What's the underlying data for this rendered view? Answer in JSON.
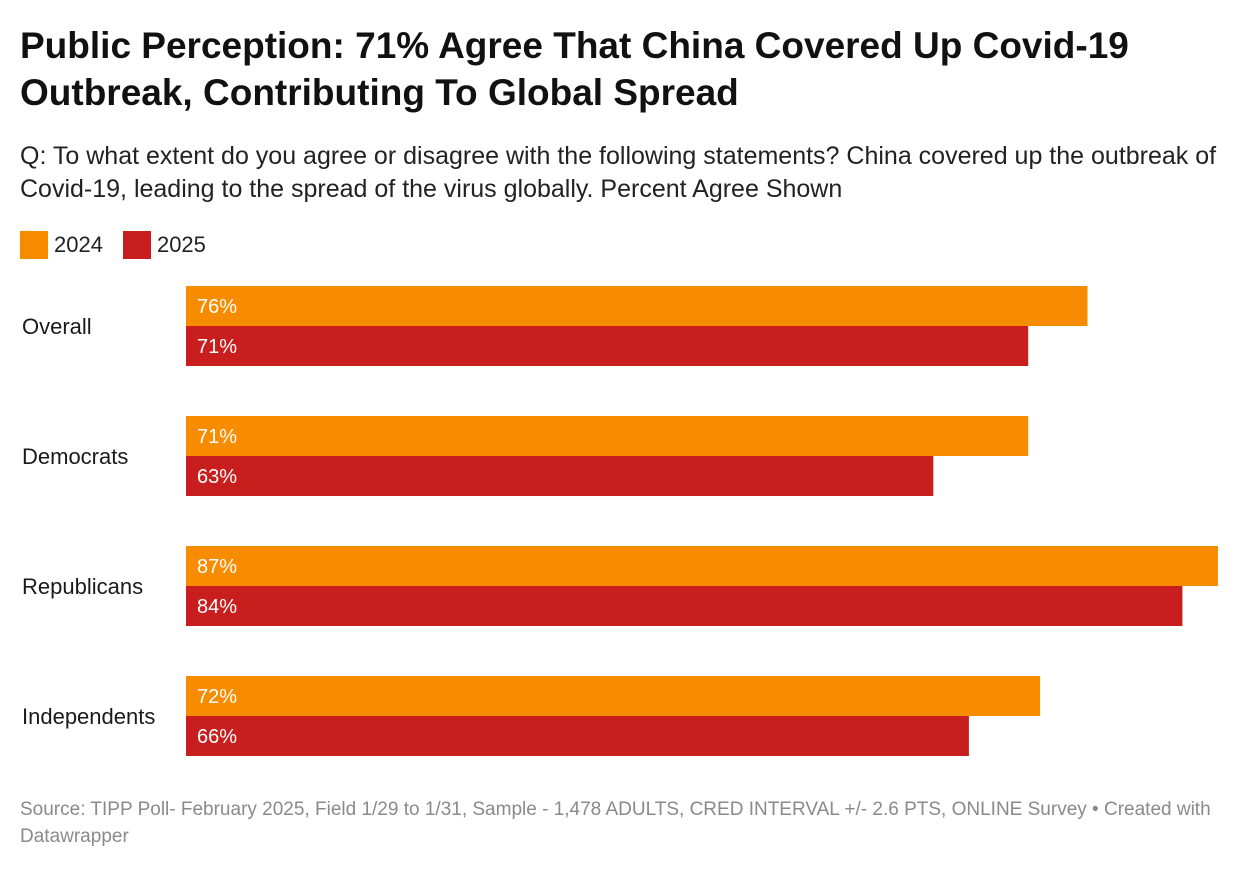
{
  "title": "Public Perception: 71% Agree That China Covered Up Covid-19 Outbreak, Contributing To Global Spread",
  "subtitle": "Q: To what extent do you agree or disagree with the following statements? China covered up the outbreak of Covid-19, leading to the spread of the virus globally. Percent Agree Shown",
  "footer": {
    "source": "Source: TIPP Poll- February 2025, Field 1/29 to 1/31, Sample - 1,478 ADULTS, CRED INTERVAL +/- 2.6 PTS, ONLINE Survey",
    "separator": " • ",
    "credit": "Created with Datawrapper"
  },
  "chart_data": {
    "type": "bar",
    "orientation": "horizontal",
    "title": "Public Perception: 71% Agree That China Covered Up Covid-19 Outbreak, Contributing To Global Spread",
    "categories": [
      "Overall",
      "Democrats",
      "Republicans",
      "Independents"
    ],
    "series": [
      {
        "name": "2024",
        "color": "#f78c00",
        "values": [
          76,
          71,
          87,
          72
        ]
      },
      {
        "name": "2025",
        "color": "#c81e1e",
        "values": [
          71,
          63,
          84,
          66
        ]
      }
    ],
    "value_suffix": "%",
    "xlim": [
      0,
      87
    ],
    "grid": false,
    "legend": "top-left",
    "label_color": "#ffffff",
    "category_label_color": "#1a1a1a"
  }
}
